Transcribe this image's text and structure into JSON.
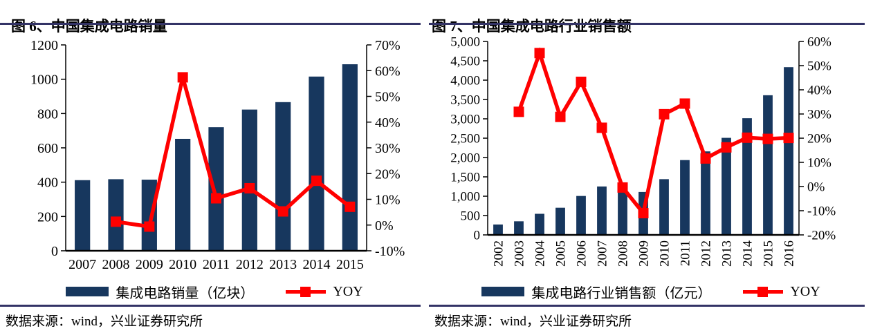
{
  "colors": {
    "bar": "#17375E",
    "line": "#FF0000",
    "rule": "#333366",
    "axis": "#000000",
    "background": "#FFFFFF"
  },
  "chart_data": [
    {
      "type": "bar",
      "combo": "bar+line",
      "title": "图 6、中国集成电路销量",
      "source": "数据来源：wind，兴业证券研究所",
      "categories": [
        "2007",
        "2008",
        "2009",
        "2010",
        "2011",
        "2012",
        "2013",
        "2014",
        "2015"
      ],
      "series": [
        {
          "name": "集成电路销量（亿块）",
          "type": "bar",
          "axis": "left",
          "values": [
            411.7,
            417.2,
            414.6,
            652.5,
            720.2,
            823.1,
            866.5,
            1015.5,
            1087.2
          ]
        },
        {
          "name": "YOY",
          "type": "line",
          "axis": "right",
          "values": [
            null,
            1.3,
            -0.6,
            57.4,
            10.4,
            14.3,
            5.3,
            17.2,
            7.1
          ]
        }
      ],
      "left_axis": {
        "min": 0,
        "max": 1200,
        "step": 200,
        "format": "plain",
        "suffix": ""
      },
      "right_axis": {
        "min": -10,
        "max": 70,
        "step": 10,
        "format": "plain",
        "suffix": "%"
      },
      "x_label_rotation": 0,
      "grid": false,
      "legend_position": "bottom"
    },
    {
      "type": "bar",
      "combo": "bar+line",
      "title": "图 7、中国集成电路行业销售额",
      "source": "数据来源：wind，兴业证券研究所",
      "categories": [
        "2002",
        "2003",
        "2004",
        "2005",
        "2006",
        "2007",
        "2008",
        "2009",
        "2010",
        "2011",
        "2012",
        "2013",
        "2014",
        "2015",
        "2016"
      ],
      "series": [
        {
          "name": "集成电路行业销售额（亿元）",
          "type": "bar",
          "axis": "left",
          "values": [
            268.4,
            351.4,
            545.3,
            702.1,
            1006.3,
            1251.3,
            1246.8,
            1109.1,
            1440.2,
            1933.7,
            2158.5,
            2508.5,
            3015.4,
            3609.8,
            4335.5
          ]
        },
        {
          "name": "YOY",
          "type": "line",
          "axis": "right",
          "values": [
            null,
            30.9,
            55.2,
            28.8,
            43.3,
            24.3,
            -0.4,
            -11.0,
            29.9,
            34.3,
            11.6,
            16.2,
            20.2,
            19.7,
            20.1
          ]
        }
      ],
      "left_axis": {
        "min": 0,
        "max": 5000,
        "step": 500,
        "format": "thousands",
        "suffix": ""
      },
      "right_axis": {
        "min": -20,
        "max": 60,
        "step": 10,
        "format": "plain",
        "suffix": "%"
      },
      "x_label_rotation": 90,
      "grid": false,
      "legend_position": "bottom"
    }
  ]
}
